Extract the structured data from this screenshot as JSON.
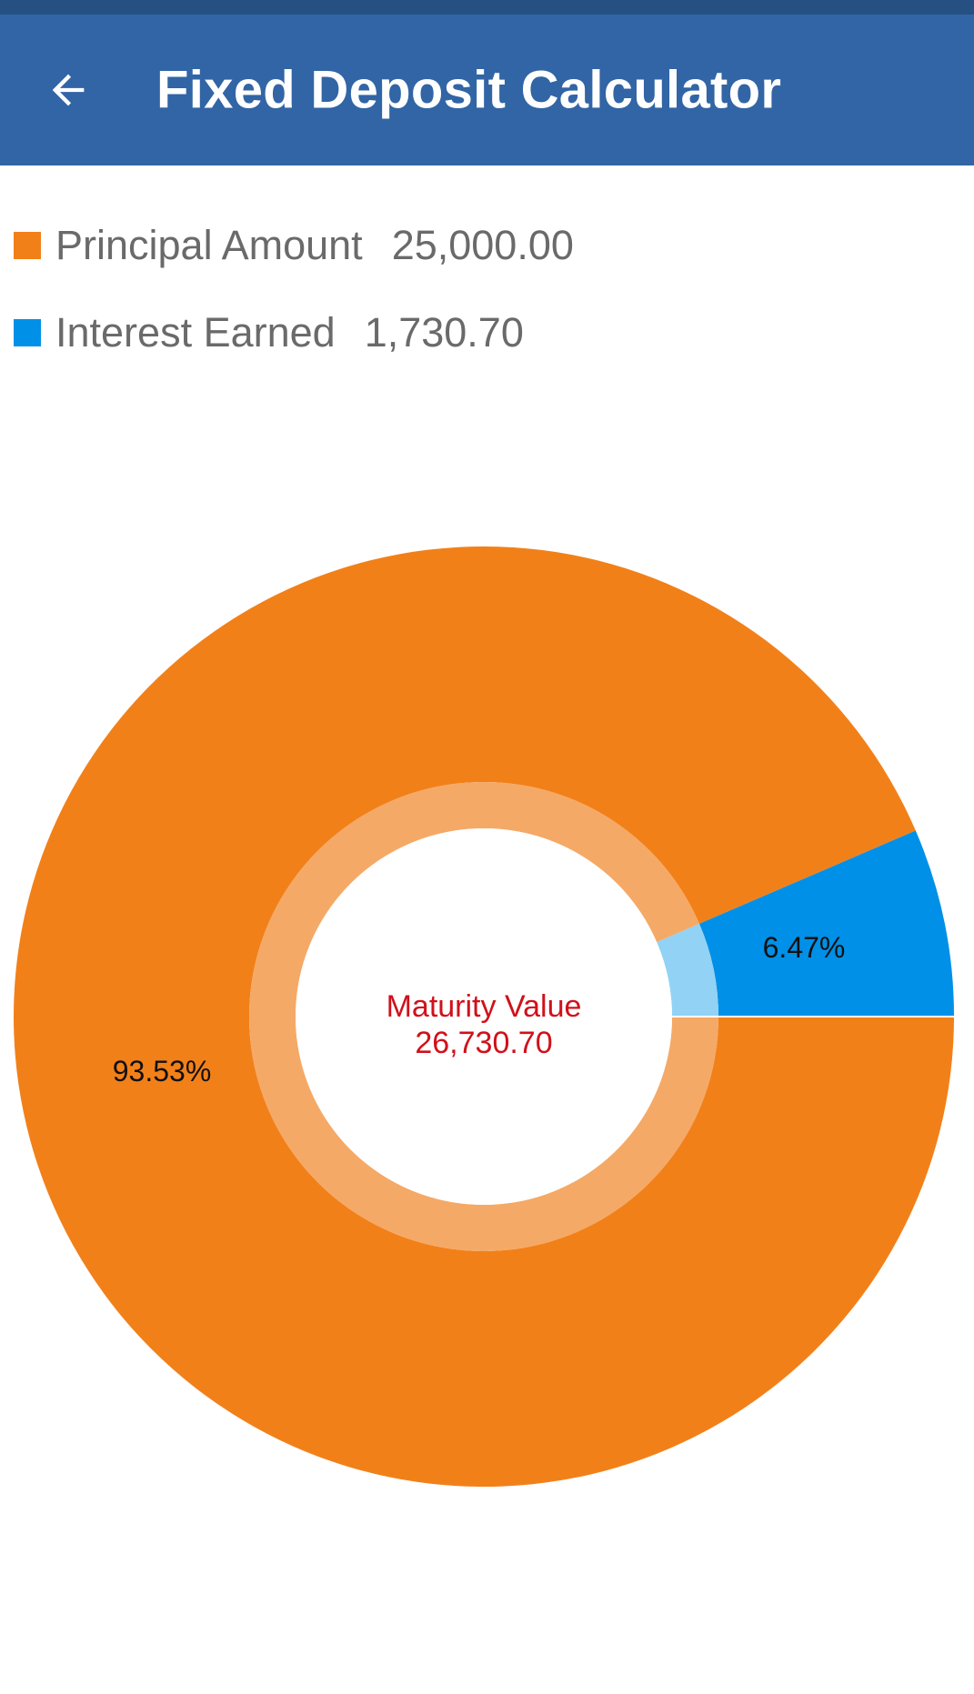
{
  "app_bar": {
    "title": "Fixed Deposit Calculator",
    "back_icon": "arrow-left-icon",
    "background": "#3165a5"
  },
  "legend": {
    "items": [
      {
        "label": "Principal Amount",
        "value": "25,000.00",
        "color": "#f28019"
      },
      {
        "label": "Interest Earned",
        "value": "1,730.70",
        "color": "#0090e7"
      }
    ]
  },
  "chart_data": {
    "type": "pie",
    "slices": [
      {
        "label": "Principal Amount",
        "value": 25000.0,
        "percent_label": "93.53%",
        "color": "#f28019",
        "inner_color": "#f5a966"
      },
      {
        "label": "Interest Earned",
        "value": 1730.7,
        "percent_label": "6.47%",
        "color": "#0090e7",
        "inner_color": "#92d2f5"
      }
    ],
    "center_text": {
      "title": "Maturity Value",
      "value": "26,730.70",
      "color": "#d0111b"
    }
  }
}
